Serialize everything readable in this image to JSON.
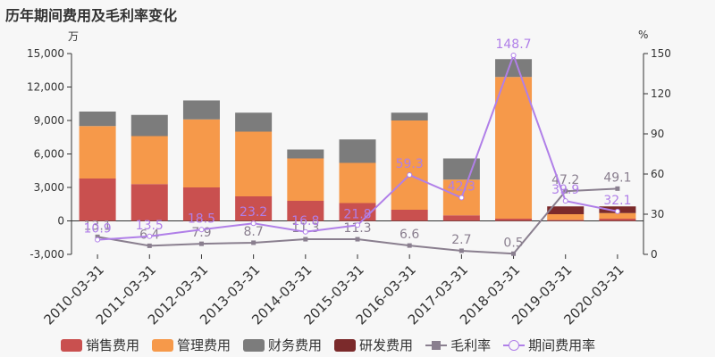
{
  "title": "历年期间费用及毛利率变化",
  "units": {
    "left": "万",
    "right": "%"
  },
  "colors": {
    "sales": "#c9504f",
    "admin": "#f6994a",
    "finance": "#7c7c7c",
    "rd": "#7b2a2b",
    "gross": "#8a7f8f",
    "period": "#b07fe8"
  },
  "legend": [
    "销售费用",
    "管理费用",
    "财务费用",
    "研发费用",
    "毛利率",
    "期间费用率"
  ],
  "chart_data": {
    "type": "bar",
    "stacked": true,
    "categories": [
      "2010-03-31",
      "2011-03-31",
      "2012-03-31",
      "2013-03-31",
      "2014-03-31",
      "2015-03-31",
      "2016-03-31",
      "2017-03-31",
      "2018-03-31",
      "2019-03-31",
      "2020-03-31"
    ],
    "series": [
      {
        "name": "销售费用",
        "axis": "left",
        "values": [
          3800,
          3300,
          3000,
          2200,
          1800,
          1600,
          1000,
          500,
          200,
          100,
          200
        ]
      },
      {
        "name": "管理费用",
        "axis": "left",
        "values": [
          4700,
          4300,
          6100,
          5800,
          3800,
          3600,
          8000,
          3200,
          12700,
          500,
          500
        ]
      },
      {
        "name": "财务费用",
        "axis": "left",
        "values": [
          1300,
          1900,
          1700,
          1700,
          800,
          2100,
          700,
          1900,
          1600,
          0,
          0
        ]
      },
      {
        "name": "研发费用",
        "axis": "left",
        "values": [
          0,
          0,
          0,
          0,
          0,
          0,
          0,
          0,
          0,
          700,
          600
        ]
      },
      {
        "name": "毛利率",
        "axis": "right",
        "type": "line",
        "values": [
          13.1,
          6.4,
          7.9,
          8.7,
          11.3,
          11.3,
          6.6,
          2.7,
          0.5,
          47.2,
          49.1
        ],
        "labels": [
          "13.1",
          "6.4",
          "7.9",
          "8.7",
          "11.3",
          "11.3",
          "6.6",
          "2.7",
          "0.5",
          "47.2",
          "49.1"
        ]
      },
      {
        "name": "期间费用率",
        "axis": "right",
        "type": "line",
        "values": [
          10.9,
          13.5,
          18.5,
          23.2,
          16.8,
          21.8,
          59.3,
          42.3,
          148.7,
          39.9,
          32.1
        ],
        "labels": [
          "10.9",
          "13.5",
          "18.5",
          "23.2",
          "16.8",
          "21.8",
          "59.3",
          "42.3",
          "148.7",
          "39.9",
          "32.1"
        ]
      }
    ],
    "y_left": {
      "ylim": [
        -3000,
        15000
      ],
      "ticks": [
        "-3,000",
        "0",
        "3,000",
        "6,000",
        "9,000",
        "12,000",
        "15,000"
      ],
      "tick_values": [
        -3000,
        0,
        3000,
        6000,
        9000,
        12000,
        15000
      ]
    },
    "y_right": {
      "ylim": [
        0,
        150
      ],
      "ticks": [
        "0",
        "30",
        "60",
        "90",
        "120",
        "150"
      ],
      "tick_values": [
        0,
        30,
        60,
        90,
        120,
        150
      ]
    },
    "grid": false,
    "legend_position": "bottom"
  }
}
